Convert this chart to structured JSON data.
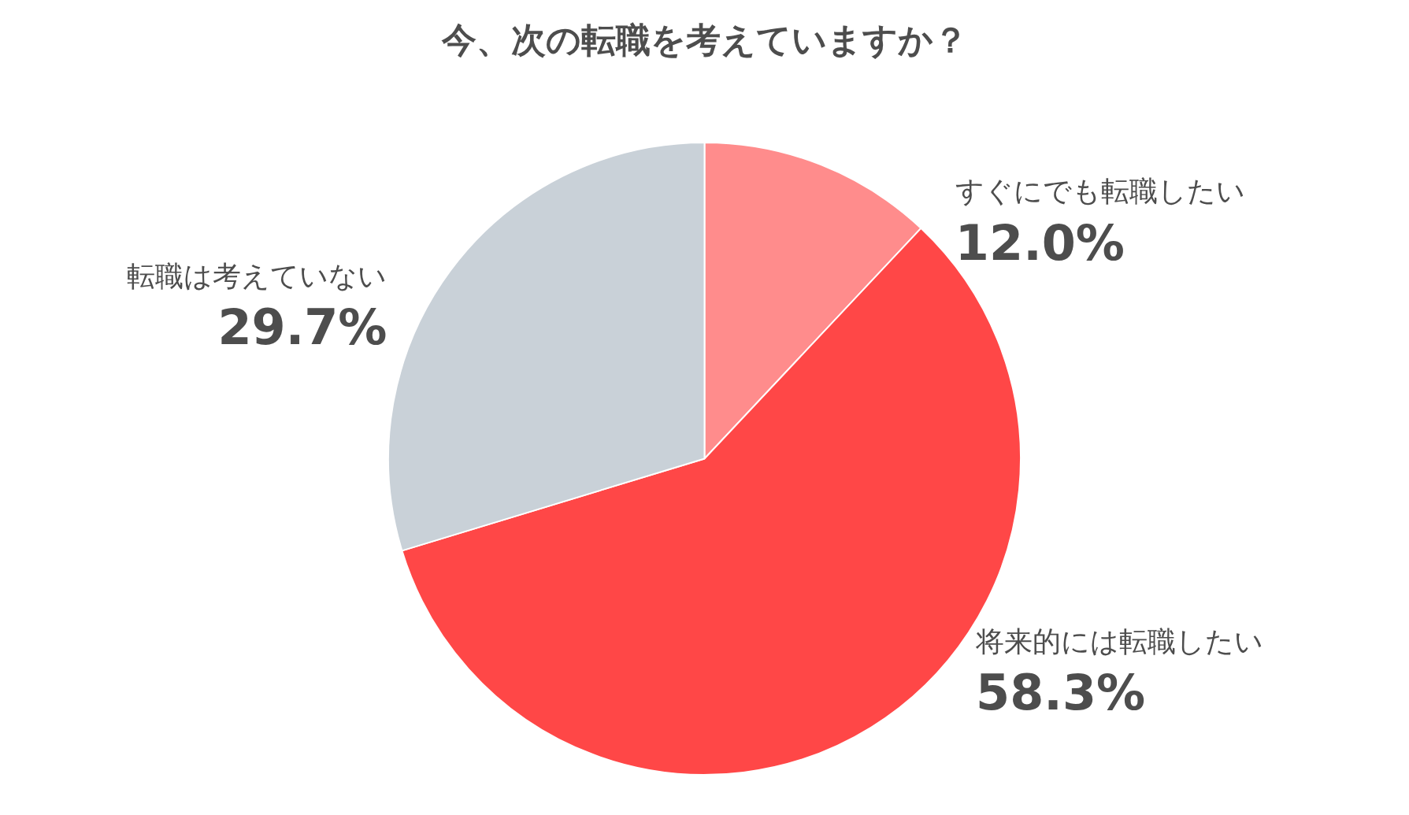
{
  "chart_data": {
    "type": "pie",
    "title": "今、次の転職を考えていますか？",
    "categories": [
      "すぐにでも転職したい",
      "将来的には転職したい",
      "転職は考えていない"
    ],
    "values": [
      12.0,
      58.3,
      29.7
    ],
    "colors": [
      "#ff8c8c",
      "#ff4747",
      "#c9d1d8"
    ],
    "value_labels": [
      "12.0%",
      "58.3%",
      "29.7%"
    ],
    "legend": false
  }
}
